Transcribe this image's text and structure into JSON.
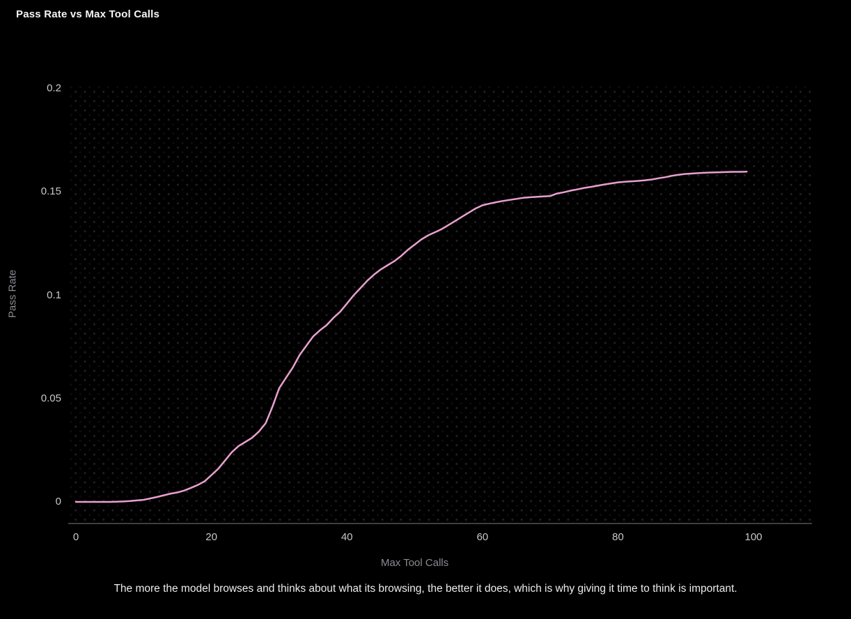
{
  "header": {
    "title": "Pass Rate vs Max Tool Calls"
  },
  "caption": "The more the model browses and thinks about what its browsing, the better it does, which is why giving it time to think is important.",
  "colors": {
    "background": "#000000",
    "line": "#e8a0cf",
    "tick_label": "#c9c7cb",
    "axis_title": "#8d8a90",
    "axis_line": "#3e3e3e",
    "title_text": "#f5f5f5",
    "caption_text": "#ededed"
  },
  "chart_data": {
    "type": "line",
    "title": "Pass Rate vs Max Tool Calls",
    "xlabel": "Max Tool Calls",
    "ylabel": "Pass Rate",
    "xlim": [
      0,
      100
    ],
    "ylim": [
      0,
      0.2
    ],
    "grid": "dotted background pattern, no gridlines",
    "legend": "none",
    "x_ticks": {
      "values": [
        0,
        20,
        40,
        60,
        80,
        100
      ],
      "labels": [
        "0",
        "20",
        "40",
        "60",
        "80",
        "100"
      ]
    },
    "y_ticks": {
      "values": [
        0,
        0.05,
        0.1,
        0.15,
        0.2
      ],
      "labels": [
        "0",
        "0.05",
        "0.1",
        "0.15",
        "0.2"
      ]
    },
    "series": [
      {
        "name": "Pass Rate",
        "color": "#e8a0cf",
        "x": [
          0,
          1,
          2,
          3,
          4,
          5,
          6,
          7,
          8,
          9,
          10,
          11,
          12,
          13,
          14,
          15,
          16,
          17,
          18,
          19,
          20,
          21,
          22,
          23,
          24,
          25,
          26,
          27,
          28,
          29,
          30,
          31,
          32,
          33,
          34,
          35,
          36,
          37,
          38,
          39,
          40,
          41,
          42,
          43,
          44,
          45,
          46,
          47,
          48,
          49,
          50,
          51,
          52,
          53,
          54,
          55,
          56,
          57,
          58,
          59,
          60,
          61,
          62,
          63,
          64,
          65,
          66,
          67,
          68,
          69,
          70,
          71,
          72,
          73,
          74,
          75,
          76,
          77,
          78,
          79,
          80,
          81,
          82,
          83,
          84,
          85,
          86,
          87,
          88,
          89,
          90,
          91,
          92,
          93,
          94,
          95,
          96,
          97,
          98,
          99
        ],
        "y": [
          0,
          0,
          0,
          0,
          0,
          0,
          0.0001,
          0.0002,
          0.0004,
          0.0007,
          0.001,
          0.0017,
          0.0024,
          0.0032,
          0.004,
          0.0046,
          0.0055,
          0.0068,
          0.0082,
          0.01,
          0.013,
          0.016,
          0.02,
          0.024,
          0.027,
          0.029,
          0.031,
          0.034,
          0.038,
          0.046,
          0.055,
          0.06,
          0.065,
          0.071,
          0.0755,
          0.08,
          0.083,
          0.0855,
          0.089,
          0.092,
          0.096,
          0.1,
          0.1035,
          0.107,
          0.11,
          0.1125,
          0.1145,
          0.1165,
          0.119,
          0.122,
          0.1245,
          0.127,
          0.129,
          0.1305,
          0.132,
          0.134,
          0.136,
          0.138,
          0.14,
          0.142,
          0.1435,
          0.1443,
          0.145,
          0.1456,
          0.1461,
          0.1466,
          0.1471,
          0.1474,
          0.1476,
          0.1478,
          0.148,
          0.1492,
          0.1498,
          0.1506,
          0.1512,
          0.1519,
          0.1524,
          0.153,
          0.1536,
          0.1541,
          0.1546,
          0.1549,
          0.1551,
          0.1553,
          0.1556,
          0.156,
          0.1566,
          0.1571,
          0.1578,
          0.1583,
          0.1587,
          0.1589,
          0.1591,
          0.1593,
          0.1594,
          0.1595,
          0.1596,
          0.1597,
          0.1597,
          0.1598
        ]
      }
    ]
  }
}
